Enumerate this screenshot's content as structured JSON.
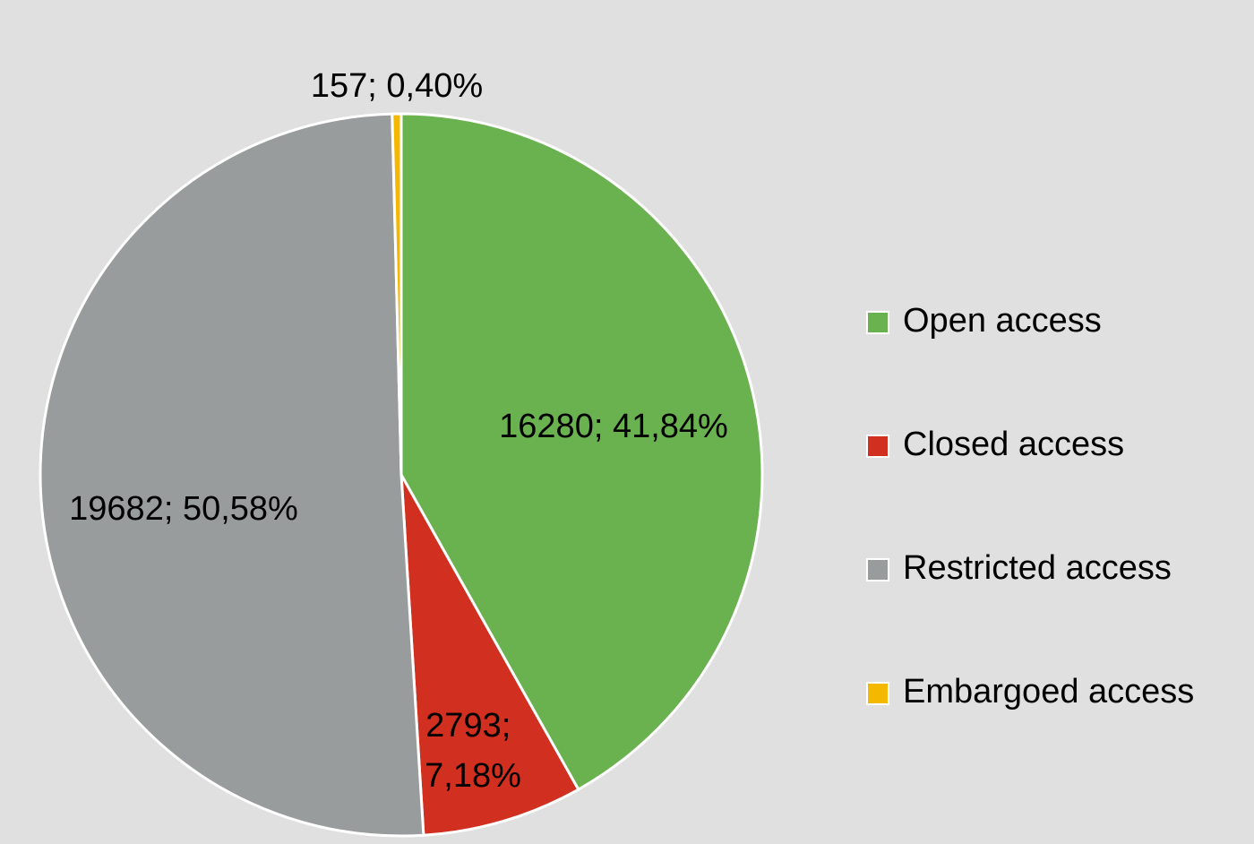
{
  "chart_data": {
    "type": "pie",
    "categories": [
      "Open access",
      "Closed access",
      "Restricted access",
      "Embargoed access"
    ],
    "values": [
      16280,
      2793,
      19682,
      157
    ],
    "value_labels": [
      "16280; 41,84%",
      "2793; 7,18%",
      "19682; 50,58%",
      "157; 0,40%"
    ],
    "colors": [
      "#6ab150",
      "#d12f1f",
      "#999c9c",
      "#f5b800"
    ],
    "legend": "right"
  }
}
